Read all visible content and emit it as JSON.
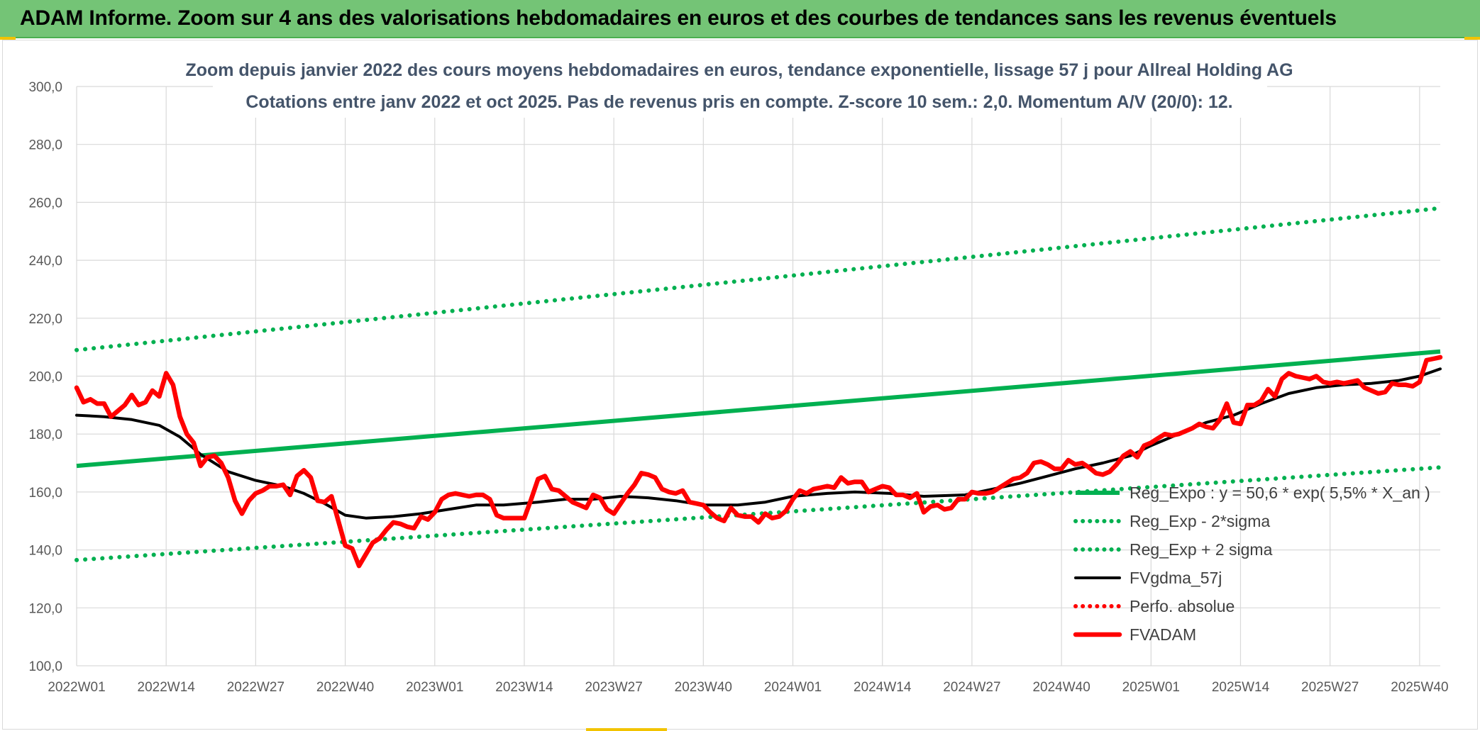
{
  "banner": {
    "title": "ADAM Informe. Zoom sur 4 ans des valorisations hebdomadaires en euros et des courbes de tendances sans les revenus éventuels"
  },
  "colors": {
    "banner": "#74c476",
    "accent": "#f2c300",
    "trend": "#00b050",
    "band": "#00b050",
    "smooth": "#000000",
    "price": "#ff0000",
    "perfo": "#ff0000",
    "title": "#44546a",
    "grid": "#d9d9d9"
  },
  "chart_data": {
    "type": "line",
    "title_lines": [
      "Zoom depuis janvier 2022 des cours moyens hebdomadaires en euros, tendance exponentielle, lissage 57 j pour Allreal Holding AG",
      "Cotations entre janv 2022 et oct 2025. Pas de revenus pris en compte. Z-score 10 sem.: 2,0. Momentum A/V (20/0): 12."
    ],
    "ylim": [
      100,
      300
    ],
    "y_ticks": [
      "100,0",
      "120,0",
      "140,0",
      "160,0",
      "180,0",
      "200,0",
      "220,0",
      "240,0",
      "260,0",
      "280,0",
      "300,0"
    ],
    "x_ticks": [
      "2022W01",
      "2022W14",
      "2022W27",
      "2022W40",
      "2023W01",
      "2023W14",
      "2023W27",
      "2023W40",
      "2024W01",
      "2024W14",
      "2024W27",
      "2024W40",
      "2025W01",
      "2025W14",
      "2025W27",
      "2025W40"
    ],
    "x_start": "2022W01",
    "x_end": "2025W43",
    "grid": true,
    "legend_position": "bottom-right inside plot",
    "series": [
      {
        "name": "Reg_Expo : y = 50,6 * exp( 5,5% *  X_an )",
        "style": "solid-thick",
        "color_key": "trend",
        "x": [
          "2022W01",
          "2025W43"
        ],
        "y": [
          169.0,
          208.5
        ]
      },
      {
        "name": "Reg_Exp - 2*sigma",
        "style": "dotted",
        "color_key": "band",
        "x": [
          "2022W01",
          "2025W43"
        ],
        "y": [
          136.5,
          168.5
        ]
      },
      {
        "name": "Reg_Exp + 2 sigma",
        "style": "dotted",
        "color_key": "band",
        "x": [
          "2022W01",
          "2025W43"
        ],
        "y": [
          209.0,
          258.0
        ]
      },
      {
        "name": "FVgdma_57j",
        "style": "solid",
        "color_key": "smooth",
        "x": [
          "2022W01",
          "2022W05",
          "2022W09",
          "2022W13",
          "2022W16",
          "2022W19",
          "2022W23",
          "2022W27",
          "2022W31",
          "2022W34",
          "2022W37",
          "2022W40",
          "2022W43",
          "2022W47",
          "2022W51",
          "2023W03",
          "2023W07",
          "2023W11",
          "2023W16",
          "2023W20",
          "2023W24",
          "2023W28",
          "2023W32",
          "2023W36",
          "2023W40",
          "2023W45",
          "2023W49",
          "2024W01",
          "2024W06",
          "2024W10",
          "2024W15",
          "2024W20",
          "2024W26",
          "2024W30",
          "2024W34",
          "2024W38",
          "2024W42",
          "2024W46",
          "2024W50",
          "2025W01",
          "2025W05",
          "2025W09",
          "2025W13",
          "2025W17",
          "2025W21",
          "2025W25",
          "2025W29",
          "2025W33",
          "2025W37",
          "2025W40",
          "2025W43"
        ],
        "y": [
          186.5,
          186.0,
          185.0,
          183.0,
          179.0,
          173.0,
          167.0,
          164.0,
          162.0,
          159.5,
          156.0,
          152.0,
          151.0,
          151.5,
          152.5,
          154.0,
          155.5,
          155.5,
          156.5,
          157.5,
          157.5,
          158.5,
          158.0,
          157.0,
          155.5,
          155.5,
          156.5,
          158.5,
          159.5,
          160.0,
          159.5,
          158.5,
          159.0,
          161.0,
          163.0,
          165.5,
          168.0,
          170.0,
          172.5,
          176.0,
          180.0,
          184.0,
          186.5,
          190.5,
          194.0,
          196.0,
          197.0,
          197.5,
          198.5,
          200.0,
          202.5
        ]
      },
      {
        "name": "Perfo. absolue",
        "style": "dotted",
        "color_key": "perfo",
        "x": [],
        "y": []
      },
      {
        "name": "FVADAM",
        "style": "solid-thick",
        "color_key": "price",
        "x": [
          "2022W01",
          "2022W02",
          "2022W03",
          "2022W04",
          "2022W05",
          "2022W06",
          "2022W07",
          "2022W08",
          "2022W09",
          "2022W10",
          "2022W11",
          "2022W12",
          "2022W13",
          "2022W14",
          "2022W15",
          "2022W16",
          "2022W17",
          "2022W18",
          "2022W19",
          "2022W20",
          "2022W21",
          "2022W22",
          "2022W23",
          "2022W24",
          "2022W25",
          "2022W26",
          "2022W27",
          "2022W28",
          "2022W29",
          "2022W30",
          "2022W31",
          "2022W32",
          "2022W33",
          "2022W34",
          "2022W35",
          "2022W36",
          "2022W37",
          "2022W38",
          "2022W39",
          "2022W40",
          "2022W41",
          "2022W42",
          "2022W43",
          "2022W44",
          "2022W45",
          "2022W46",
          "2022W47",
          "2022W48",
          "2022W49",
          "2022W50",
          "2022W51",
          "2022W52",
          "2023W01",
          "2023W02",
          "2023W03",
          "2023W04",
          "2023W05",
          "2023W06",
          "2023W07",
          "2023W08",
          "2023W09",
          "2023W10",
          "2023W11",
          "2023W12",
          "2023W13",
          "2023W14",
          "2023W15",
          "2023W16",
          "2023W17",
          "2023W18",
          "2023W19",
          "2023W20",
          "2023W21",
          "2023W22",
          "2023W23",
          "2023W24",
          "2023W25",
          "2023W26",
          "2023W27",
          "2023W28",
          "2023W29",
          "2023W30",
          "2023W31",
          "2023W32",
          "2023W33",
          "2023W34",
          "2023W35",
          "2023W36",
          "2023W37",
          "2023W38",
          "2023W39",
          "2023W40",
          "2023W41",
          "2023W42",
          "2023W43",
          "2023W44",
          "2023W45",
          "2023W46",
          "2023W47",
          "2023W48",
          "2023W49",
          "2023W50",
          "2023W51",
          "2023W52",
          "2024W01",
          "2024W02",
          "2024W03",
          "2024W04",
          "2024W05",
          "2024W06",
          "2024W07",
          "2024W08",
          "2024W09",
          "2024W10",
          "2024W11",
          "2024W12",
          "2024W13",
          "2024W14",
          "2024W15",
          "2024W16",
          "2024W17",
          "2024W18",
          "2024W19",
          "2024W20",
          "2024W21",
          "2024W22",
          "2024W23",
          "2024W24",
          "2024W25",
          "2024W26",
          "2024W27",
          "2024W28",
          "2024W29",
          "2024W30",
          "2024W31",
          "2024W32",
          "2024W33",
          "2024W34",
          "2024W35",
          "2024W36",
          "2024W37",
          "2024W38",
          "2024W39",
          "2024W40",
          "2024W41",
          "2024W42",
          "2024W43",
          "2024W44",
          "2024W45",
          "2024W46",
          "2024W47",
          "2024W48",
          "2024W49",
          "2024W50",
          "2024W51",
          "2024W52",
          "2025W01",
          "2025W02",
          "2025W03",
          "2025W04",
          "2025W05",
          "2025W06",
          "2025W07",
          "2025W08",
          "2025W09",
          "2025W10",
          "2025W11",
          "2025W12",
          "2025W13",
          "2025W14",
          "2025W15",
          "2025W16",
          "2025W17",
          "2025W18",
          "2025W19",
          "2025W20",
          "2025W21",
          "2025W22",
          "2025W23",
          "2025W24",
          "2025W25",
          "2025W26",
          "2025W27",
          "2025W28",
          "2025W29",
          "2025W30",
          "2025W31",
          "2025W32",
          "2025W33",
          "2025W34",
          "2025W35",
          "2025W36",
          "2025W37",
          "2025W38",
          "2025W39",
          "2025W40",
          "2025W41",
          "2025W42",
          "2025W43"
        ],
        "y": [
          196.0,
          191.0,
          192.0,
          190.5,
          190.5,
          186.0,
          188.0,
          190.0,
          193.5,
          190.0,
          191.0,
          195.0,
          193.0,
          201.0,
          197.0,
          186.0,
          180.0,
          177.0,
          169.0,
          172.0,
          172.5,
          170.0,
          165.0,
          157.0,
          152.5,
          157.0,
          159.5,
          160.5,
          162.0,
          162.0,
          162.5,
          159.0,
          165.5,
          167.5,
          165.0,
          157.0,
          156.5,
          158.5,
          150.0,
          141.5,
          140.5,
          134.5,
          138.5,
          142.5,
          144.0,
          147.0,
          149.5,
          149.0,
          148.0,
          147.5,
          151.5,
          150.5,
          153.0,
          157.5,
          159.0,
          159.5,
          159.0,
          158.5,
          159.0,
          159.0,
          157.5,
          152.0,
          151.0,
          151.0,
          151.0,
          151.0,
          157.5,
          164.5,
          165.5,
          161.0,
          160.5,
          158.5,
          156.5,
          155.5,
          154.5,
          159.0,
          158.0,
          154.0,
          152.5,
          156.0,
          159.5,
          162.5,
          166.5,
          166.0,
          165.0,
          161.0,
          160.0,
          159.5,
          160.5,
          156.5,
          156.0,
          155.5,
          153.0,
          151.0,
          150.0,
          154.5,
          152.0,
          151.5,
          151.5,
          149.5,
          152.5,
          151.0,
          151.5,
          153.5,
          157.5,
          160.5,
          159.5,
          161.0,
          161.5,
          162.0,
          161.5,
          165.0,
          163.0,
          163.5,
          163.5,
          160.0,
          161.0,
          162.0,
          161.5,
          159.0,
          159.0,
          158.0,
          159.5,
          153.0,
          155.0,
          155.5,
          154.0,
          154.5,
          157.5,
          157.5,
          160.0,
          159.5,
          159.5,
          160.0,
          161.5,
          163.0,
          164.5,
          165.0,
          166.5,
          170.0,
          170.5,
          169.5,
          168.0,
          168.0,
          171.0,
          169.5,
          170.0,
          168.5,
          166.5,
          166.0,
          167.0,
          169.5,
          172.5,
          174.0,
          172.0,
          176.0,
          177.0,
          178.5,
          180.0,
          179.5,
          180.0,
          181.0,
          182.0,
          183.5,
          182.5,
          182.0,
          185.0,
          190.5,
          184.0,
          183.5,
          190.0,
          190.0,
          191.5,
          195.5,
          193.0,
          199.0,
          201.0,
          200.0,
          199.5,
          199.0,
          200.0,
          198.0,
          197.5,
          198.0,
          197.5,
          198.0,
          198.5,
          196.0,
          195.0,
          194.0,
          194.5,
          197.5,
          197.0,
          197.0,
          196.5,
          198.0,
          205.5,
          206.0,
          206.5
        ]
      }
    ]
  }
}
